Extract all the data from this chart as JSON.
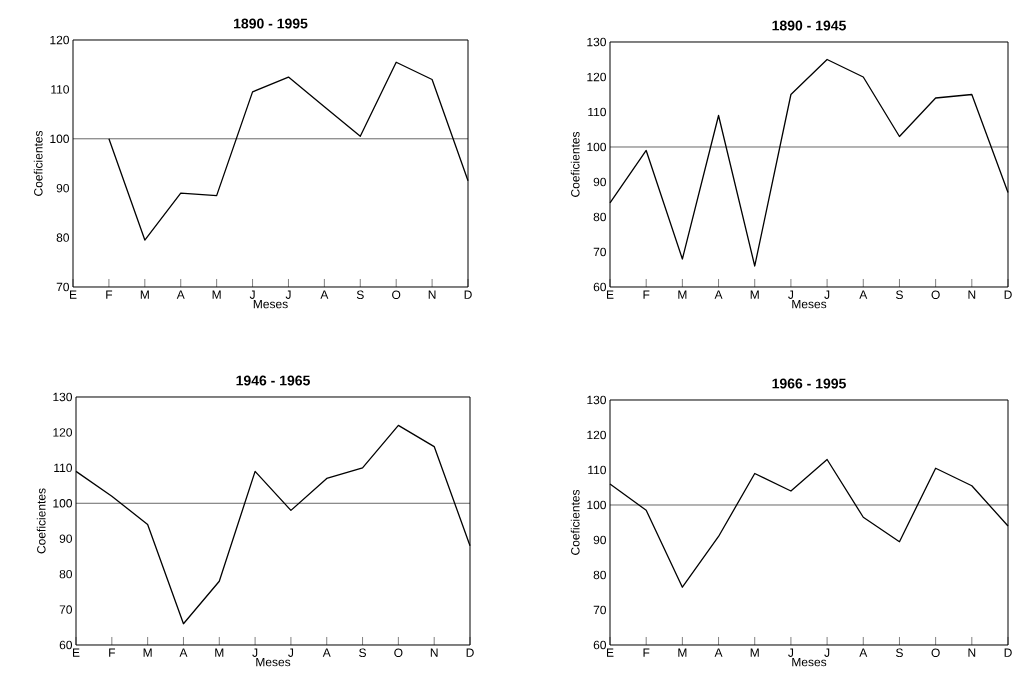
{
  "chart_data": [
    {
      "type": "line",
      "title": "1890 - 1995",
      "xlabel": "Meses",
      "ylabel": "Coeficientes",
      "categories": [
        "E",
        "F",
        "M",
        "A",
        "M",
        "J",
        "J",
        "A",
        "S",
        "O",
        "N",
        "D"
      ],
      "values": [
        null,
        100,
        79.5,
        89,
        88.5,
        109.5,
        112.5,
        106.5,
        100.5,
        115.5,
        112,
        91.5
      ],
      "color": "#000000",
      "ylim": [
        70,
        120
      ],
      "yticks": [
        70,
        80,
        90,
        100,
        110,
        120
      ],
      "ref_lines": [
        {
          "axis": "y",
          "value": 100
        }
      ]
    },
    {
      "type": "line",
      "title": "1890 - 1945",
      "xlabel": "Meses",
      "ylabel": "Coeficientes",
      "categories": [
        "E",
        "F",
        "M",
        "A",
        "M",
        "J",
        "J",
        "A",
        "S",
        "O",
        "N",
        "D"
      ],
      "values": [
        84,
        99,
        68,
        109,
        66,
        115,
        125,
        120,
        103,
        114,
        115,
        87
      ],
      "color": "#000000",
      "ylim": [
        60,
        130
      ],
      "yticks": [
        60,
        70,
        80,
        90,
        100,
        110,
        120,
        130
      ],
      "ref_lines": [
        {
          "axis": "y",
          "value": 100
        }
      ]
    },
    {
      "type": "line",
      "title": "1946 - 1965",
      "xlabel": "Meses",
      "ylabel": "Coeficientes",
      "categories": [
        "E",
        "F",
        "M",
        "A",
        "M",
        "J",
        "J",
        "A",
        "S",
        "O",
        "N",
        "D"
      ],
      "values": [
        109,
        102,
        94,
        66,
        78,
        109,
        98,
        107,
        110,
        122,
        116,
        88
      ],
      "color": "#000000",
      "ylim": [
        60,
        130
      ],
      "yticks": [
        60,
        70,
        80,
        90,
        100,
        110,
        120,
        130
      ],
      "ref_lines": [
        {
          "axis": "y",
          "value": 100
        }
      ]
    },
    {
      "type": "line",
      "title": "1966 - 1995",
      "xlabel": "Meses",
      "ylabel": "Coeficientes",
      "categories": [
        "E",
        "F",
        "M",
        "A",
        "M",
        "J",
        "J",
        "A",
        "S",
        "O",
        "N",
        "D"
      ],
      "values": [
        106,
        98.5,
        76.5,
        91,
        109,
        104,
        113,
        96.5,
        89.5,
        110.5,
        105.5,
        94
      ],
      "color": "#000000",
      "ylim": [
        60,
        130
      ],
      "yticks": [
        60,
        70,
        80,
        90,
        100,
        110,
        120,
        130
      ],
      "ref_lines": [
        {
          "axis": "y",
          "value": 100
        }
      ]
    }
  ]
}
